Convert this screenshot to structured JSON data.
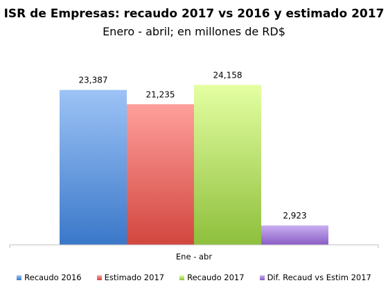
{
  "chart_data": {
    "type": "bar",
    "title": "ISR de Empresas: recaudo 2017 vs 2016 y estimado 2017",
    "subtitle": "Enero - abril; en millones de RD$",
    "categories": [
      "Ene - abr"
    ],
    "series": [
      {
        "name": "Recaudo 2016",
        "values": [
          23387
        ],
        "label": "23,387",
        "color_top": "#9dc3f6",
        "color_bottom": "#3a78c9"
      },
      {
        "name": "Estimado 2017",
        "values": [
          21235
        ],
        "label": "21,235",
        "color_top": "#ff9f9b",
        "color_bottom": "#d2463f"
      },
      {
        "name": "Recaudo 2017",
        "values": [
          24158
        ],
        "label": "24,158",
        "color_top": "#e4ffa2",
        "color_bottom": "#8ebf3c"
      },
      {
        "name": "Dif. Recaud vs Estim 2017",
        "values": [
          2923
        ],
        "label": "2,923",
        "color_top": "#c9aef0",
        "color_bottom": "#8a5cc6"
      }
    ],
    "ylim": [
      0,
      26500
    ],
    "grid": false,
    "legend_position": "bottom"
  }
}
